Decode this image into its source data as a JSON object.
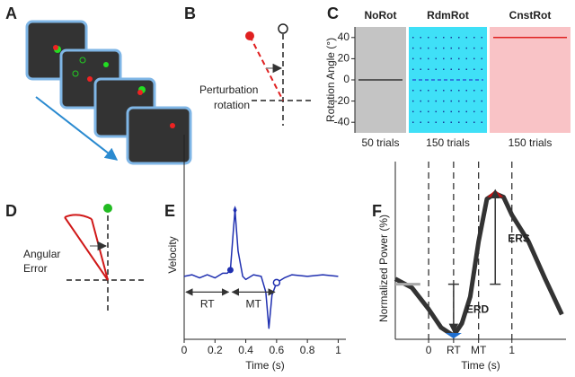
{
  "panel_labels": [
    "A",
    "B",
    "C",
    "D",
    "E",
    "F"
  ],
  "panel_b": {
    "label_lines": [
      "Perturbation",
      "rotation"
    ]
  },
  "panel_d": {
    "label_lines": [
      "Angular",
      "Error"
    ]
  },
  "chart_data": [
    {
      "type": "schedule",
      "ylabel": "Rotation Angle (°)",
      "ylim": [
        -50,
        50
      ],
      "yticks": [
        -40,
        -20,
        0,
        20,
        40
      ],
      "segments": [
        {
          "name": "NoRot",
          "trials_label": "50 trials",
          "color": "#c4c4c4",
          "name_color": "#555555",
          "line_color": "#333333",
          "values": [
            0
          ]
        },
        {
          "name": "RdmRot",
          "trials_label": "150 trials",
          "color": "#3fe0f7",
          "name_color": "#2a2ac8",
          "line_color": "#1a3a9a",
          "values": [
            -40,
            -30,
            -20,
            -10,
            0,
            10,
            20,
            30,
            40
          ],
          "style": "dotted"
        },
        {
          "name": "CnstRot",
          "trials_label": "150 trials",
          "color": "#f9c3c6",
          "name_color": "#e02020",
          "line_color": "#e02020",
          "values": [
            40
          ]
        }
      ]
    },
    {
      "type": "line",
      "ylabel": "Velocity",
      "xlabel": "Time (s)",
      "xlim": [
        0,
        1.05
      ],
      "ylim": [
        -2,
        4.5
      ],
      "xticks": [
        0,
        0.2,
        0.4,
        0.6,
        0.8,
        1
      ],
      "series": [
        {
          "color": "#1f2fb0",
          "x": [
            0,
            0.05,
            0.1,
            0.15,
            0.2,
            0.25,
            0.28,
            0.3,
            0.32,
            0.33,
            0.35,
            0.38,
            0.4,
            0.45,
            0.5,
            0.53,
            0.55,
            0.57,
            0.6,
            0.65,
            0.7,
            0.8,
            0.9,
            1.0
          ],
          "values": [
            0,
            0.05,
            -0.05,
            0.05,
            -0.05,
            0.1,
            0.1,
            0.2,
            1.5,
            2.1,
            0.8,
            0,
            -0.1,
            0.05,
            0,
            -0.5,
            -1.65,
            -0.6,
            -0.2,
            -0.05,
            0.05,
            0,
            0.05,
            0
          ]
        }
      ],
      "markers": [
        {
          "x": 0.3,
          "y": 0.2,
          "shape": "dot",
          "color": "#1f2fb0"
        },
        {
          "x": 0.33,
          "y": 2.1,
          "shape": "star",
          "color": "#1f2fb0"
        },
        {
          "x": 0.6,
          "y": -0.2,
          "shape": "open",
          "color": "#1f2fb0"
        }
      ],
      "annotations": [
        {
          "text": "RT",
          "x": [
            0,
            0.3
          ],
          "y": -0.5
        },
        {
          "text": "MT",
          "x": [
            0.3,
            0.6
          ],
          "y": -0.5
        }
      ]
    },
    {
      "type": "line",
      "ylabel": "Normalized Power (%)",
      "xlabel": "Time (s)",
      "xlim": [
        -0.4,
        1.65
      ],
      "ylim": [
        0,
        100
      ],
      "xticks": [
        0,
        {
          "value": 0.3,
          "label": "RT"
        },
        {
          "value": 0.6,
          "label": "MT"
        },
        1
      ],
      "grid_style": "dashed",
      "series": [
        {
          "color": "#333333",
          "width": 5,
          "x": [
            -0.4,
            -0.2,
            0,
            0.15,
            0.3,
            0.4,
            0.5,
            0.6,
            0.7,
            0.8,
            0.9,
            1.0,
            1.2,
            1.4,
            1.6
          ],
          "values": [
            34,
            29,
            17,
            6.6,
            2,
            9,
            24,
            55,
            79,
            82,
            80,
            70,
            55,
            34,
            14
          ]
        },
        {
          "color": "#aaaaaa",
          "width": 3,
          "x": [
            -0.4,
            -0.1
          ],
          "values": [
            31,
            31
          ]
        }
      ],
      "markers": [
        {
          "x": 0.3,
          "y": 2,
          "shape": "tri-down",
          "color": "#1f6fd0"
        },
        {
          "x": 0.8,
          "y": 82,
          "shape": "tri-up",
          "color": "#cc1010"
        }
      ],
      "annotations": [
        {
          "text": "ERD",
          "x": 0.3,
          "y": [
            2,
            31
          ]
        },
        {
          "text": "ERS",
          "x": 0.8,
          "y": [
            82,
            31
          ]
        }
      ]
    }
  ]
}
